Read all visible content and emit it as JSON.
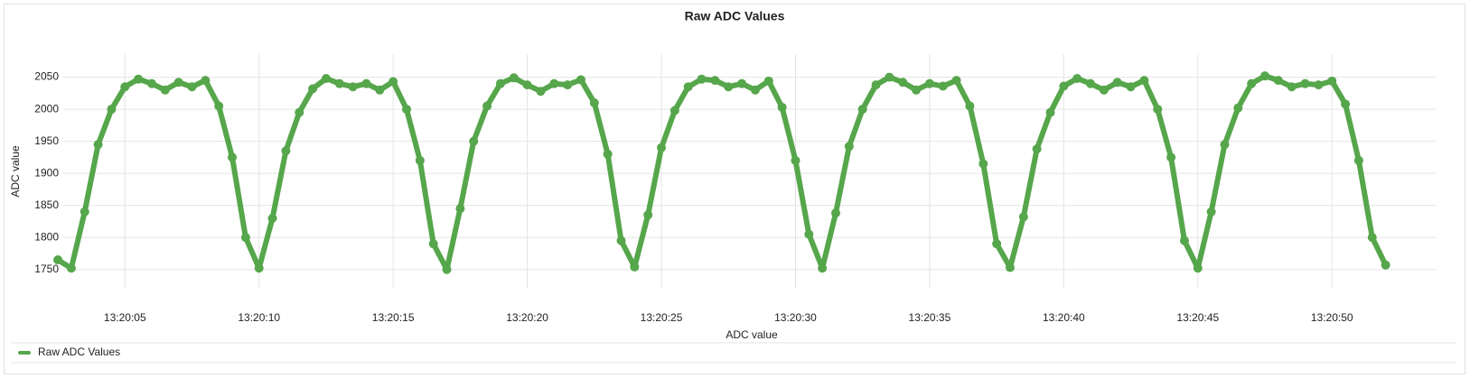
{
  "chart_data": {
    "type": "line",
    "title": "Raw ADC Values",
    "xlabel": "ADC value",
    "ylabel": "ADC value",
    "x": [
      "13:20:02.5",
      "13:20:03.0",
      "13:20:03.5",
      "13:20:04.0",
      "13:20:04.5",
      "13:20:05.0",
      "13:20:05.5",
      "13:20:06.0",
      "13:20:06.5",
      "13:20:07.0",
      "13:20:07.5",
      "13:20:08.0",
      "13:20:08.5",
      "13:20:09.0",
      "13:20:09.5",
      "13:20:10.0",
      "13:20:10.5",
      "13:20:11.0",
      "13:20:11.5",
      "13:20:12.0",
      "13:20:12.5",
      "13:20:13.0",
      "13:20:13.5",
      "13:20:14.0",
      "13:20:14.5",
      "13:20:15.0",
      "13:20:15.5",
      "13:20:16.0",
      "13:20:16.5",
      "13:20:17.0",
      "13:20:17.5",
      "13:20:18.0",
      "13:20:18.5",
      "13:20:19.0",
      "13:20:19.5",
      "13:20:20.0",
      "13:20:20.5",
      "13:20:21.0",
      "13:20:21.5",
      "13:20:22.0",
      "13:20:22.5",
      "13:20:23.0",
      "13:20:23.5",
      "13:20:24.0",
      "13:20:24.5",
      "13:20:25.0",
      "13:20:25.5",
      "13:20:26.0",
      "13:20:26.5",
      "13:20:27.0",
      "13:20:27.5",
      "13:20:28.0",
      "13:20:28.5",
      "13:20:29.0",
      "13:20:29.5",
      "13:20:30.0",
      "13:20:30.5",
      "13:20:31.0",
      "13:20:31.5",
      "13:20:32.0",
      "13:20:32.5",
      "13:20:33.0",
      "13:20:33.5",
      "13:20:34.0",
      "13:20:34.5",
      "13:20:35.0",
      "13:20:35.5",
      "13:20:36.0",
      "13:20:36.5",
      "13:20:37.0",
      "13:20:37.5",
      "13:20:38.0",
      "13:20:38.5",
      "13:20:39.0",
      "13:20:39.5",
      "13:20:40.0",
      "13:20:40.5",
      "13:20:41.0",
      "13:20:41.5",
      "13:20:42.0",
      "13:20:42.5",
      "13:20:43.0",
      "13:20:43.5",
      "13:20:44.0",
      "13:20:44.5",
      "13:20:45.0",
      "13:20:45.5",
      "13:20:46.0",
      "13:20:46.5",
      "13:20:47.0",
      "13:20:47.5",
      "13:20:48.0",
      "13:20:48.5",
      "13:20:49.0",
      "13:20:49.5",
      "13:20:50.0",
      "13:20:50.5",
      "13:20:51.0",
      "13:20:51.5",
      "13:20:52.0"
    ],
    "series": [
      {
        "name": "Raw ADC Values",
        "color": "#56a64b",
        "values": [
          1765,
          1752,
          1840,
          1945,
          2000,
          2035,
          2047,
          2040,
          2030,
          2042,
          2035,
          2045,
          2005,
          1925,
          1800,
          1752,
          1830,
          1935,
          1995,
          2032,
          2048,
          2040,
          2035,
          2040,
          2030,
          2043,
          2000,
          1920,
          1790,
          1750,
          1845,
          1950,
          2005,
          2040,
          2049,
          2038,
          2028,
          2040,
          2038,
          2046,
          2010,
          1930,
          1795,
          1754,
          1835,
          1940,
          1998,
          2035,
          2047,
          2045,
          2035,
          2040,
          2030,
          2044,
          2003,
          1920,
          1805,
          1752,
          1838,
          1942,
          2000,
          2038,
          2050,
          2042,
          2030,
          2040,
          2036,
          2045,
          2005,
          1915,
          1790,
          1753,
          1832,
          1938,
          1995,
          2036,
          2048,
          2040,
          2030,
          2042,
          2035,
          2045,
          2000,
          1925,
          1795,
          1752,
          1840,
          1945,
          2002,
          2040,
          2052,
          2045,
          2035,
          2040,
          2038,
          2044,
          2008,
          1920,
          1800,
          1757
        ]
      }
    ],
    "xlim": [
      "13:20:02.7",
      "13:20:53.9"
    ],
    "xticks": [
      "13:20:05",
      "13:20:10",
      "13:20:15",
      "13:20:20",
      "13:20:25",
      "13:20:30",
      "13:20:35",
      "13:20:40",
      "13:20:45",
      "13:20:50"
    ],
    "ylim": [
      1720,
      2086
    ],
    "yticks": [
      1750,
      1800,
      1850,
      1900,
      1950,
      2000,
      2050
    ],
    "grid": true,
    "legend": "bottom-left"
  }
}
